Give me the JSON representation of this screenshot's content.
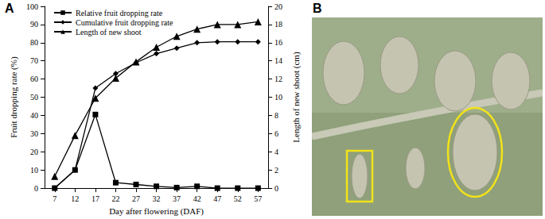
{
  "panel_labels": [
    "A",
    "B"
  ],
  "chart_data": {
    "type": "line",
    "x_label": "Day after flowering (DAF)",
    "y_label": "Fruit dropping rate (%)",
    "y2_label": "Length of new shoot (cm)",
    "categories": [
      "7",
      "12",
      "17",
      "22",
      "27",
      "32",
      "37",
      "42",
      "47",
      "52",
      "57"
    ],
    "ylim": [
      0,
      100
    ],
    "yticks": [
      0,
      10,
      20,
      30,
      40,
      50,
      60,
      70,
      80,
      90,
      100
    ],
    "y2lim": [
      0,
      20
    ],
    "y2ticks": [
      0,
      2,
      4,
      6,
      8,
      10,
      12,
      14,
      16,
      18,
      20
    ],
    "grid": false,
    "legend": "upper left",
    "series": [
      {
        "name": "Relative fruit dropping rate",
        "color": "#000000",
        "marker": "square",
        "line_style": "solid",
        "values": [
          0,
          10,
          40.5,
          3,
          2,
          1,
          0.3,
          1,
          0,
          0,
          0
        ]
      },
      {
        "name": "Cumulative fruit dropping rate",
        "color": "#000000",
        "marker": "diamond",
        "line_style": "solid",
        "values": [
          0,
          10,
          55,
          63,
          69,
          74,
          77,
          80,
          80.5,
          80.5,
          80.5
        ]
      },
      {
        "name": "Length of new shoot",
        "color": "#000000",
        "marker": "triangle",
        "line_style": "solid",
        "axis": "y2",
        "values": [
          1.3,
          5.8,
          9.9,
          12.1,
          13.9,
          15.5,
          16.7,
          17.5,
          18,
          18,
          18.3
        ]
      }
    ]
  }
}
